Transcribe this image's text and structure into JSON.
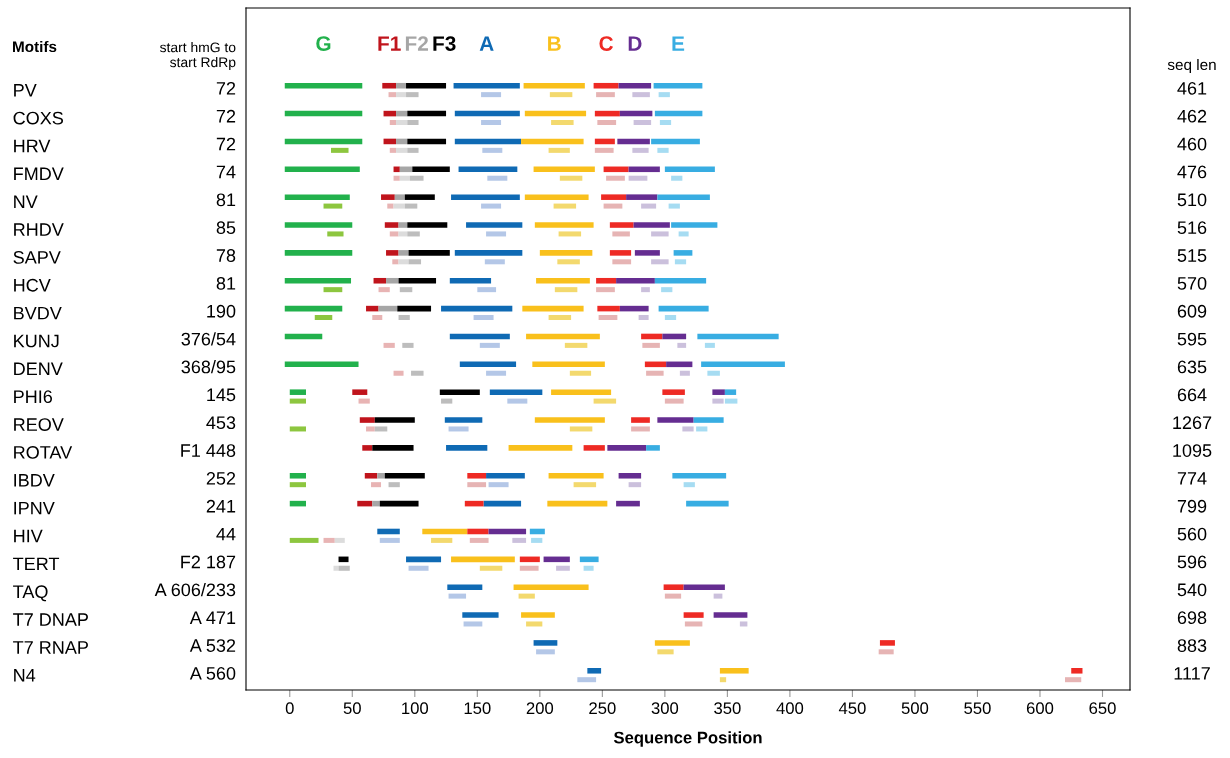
{
  "chart_data": {
    "type": "bar",
    "orientation": "horizontal",
    "xlabel": "Sequence Position",
    "categories": [
      "PV",
      "COXS",
      "HRV",
      "FMDV",
      "NV",
      "RHDV",
      "SAPV",
      "HCV",
      "BVDV",
      "KUNJ",
      "DENV",
      "PHI6",
      "REOV",
      "ROTAV",
      "IBDV",
      "IPNV",
      "HIV",
      "TERT",
      "TAQ",
      "T7 DNAP",
      "T7 RNAP",
      "N4"
    ],
    "xlim": [
      -35,
      672
    ],
    "xticks": [
      0,
      50,
      100,
      150,
      200,
      250,
      300,
      350,
      400,
      450,
      500,
      550,
      600,
      650
    ],
    "grid": false,
    "annotations": [
      "Motifs",
      "start hmG to\nstart RdRp",
      "seq len",
      "72",
      "72",
      "72",
      "74",
      "81",
      "85",
      "78",
      "81",
      "190",
      "376/54",
      "368/95",
      "145",
      "453",
      "F1 448",
      "252",
      "241",
      "44",
      "F2 187",
      "A 606/233",
      "A 471",
      "A 532",
      "A 560",
      "461",
      "462",
      "460",
      "476",
      "510",
      "516",
      "515",
      "570",
      "609",
      "595",
      "635",
      "664",
      "1267",
      "1095",
      "774",
      "799",
      "560",
      "596",
      "540",
      "698",
      "883",
      "1117"
    ],
    "series": [
      {
        "name": "G",
        "color": "#22b14c",
        "base": [
          -4,
          -4,
          -4,
          -4,
          -4,
          -4,
          -4,
          -4,
          -4,
          -4,
          -4,
          0,
          null,
          null,
          0,
          0,
          null,
          null,
          null,
          null,
          null,
          null
        ],
        "values": [
          62,
          62,
          62,
          60,
          52,
          54,
          54,
          53,
          46,
          30,
          59,
          13,
          null,
          null,
          13,
          13,
          null,
          null,
          null,
          null,
          null,
          null
        ]
      },
      {
        "name": "F1",
        "color": "#c0141c",
        "base": [
          74,
          75,
          75,
          83,
          73,
          76,
          77,
          67,
          61,
          null,
          null,
          50,
          56,
          58,
          60,
          54,
          null,
          null,
          null,
          null,
          null,
          null
        ],
        "values": [
          11,
          10,
          10,
          5,
          11,
          11,
          10,
          10,
          10,
          null,
          null,
          12,
          12,
          8,
          10,
          12,
          null,
          null,
          null,
          null,
          null,
          null
        ]
      },
      {
        "name": "F2",
        "color": "#a6a6a6",
        "base": [
          85,
          85,
          85,
          88,
          84,
          87,
          87,
          77,
          71,
          null,
          null,
          null,
          null,
          null,
          70,
          66,
          null,
          null,
          null,
          null,
          null,
          null
        ],
        "values": [
          8,
          9,
          9,
          10,
          8,
          7,
          8,
          10,
          15,
          null,
          null,
          null,
          null,
          null,
          6,
          6,
          null,
          null,
          null,
          null,
          null,
          null
        ]
      },
      {
        "name": "F3",
        "color": "#000000",
        "base": [
          93,
          94,
          94,
          98,
          92,
          94,
          95,
          87,
          86,
          null,
          null,
          120,
          68,
          66,
          76,
          72,
          null,
          39,
          null,
          null,
          null,
          null
        ],
        "values": [
          32,
          31,
          31,
          30,
          24,
          32,
          33,
          30,
          27,
          null,
          null,
          32,
          32,
          33,
          32,
          31,
          null,
          8,
          null,
          null,
          null,
          null
        ]
      },
      {
        "name": "A",
        "color": "#0f6ab4",
        "base": [
          131,
          132,
          132,
          135,
          129,
          141,
          132,
          128,
          121,
          128,
          136,
          160,
          124,
          125,
          157,
          155,
          70,
          93,
          126,
          138,
          195,
          238
        ],
        "values": [
          53,
          52,
          53,
          47,
          55,
          45,
          54,
          33,
          57,
          48,
          45,
          42,
          30,
          33,
          31,
          30,
          18,
          28,
          28,
          29,
          19,
          11
        ]
      },
      {
        "name": "B",
        "color": "#f9c01c",
        "base": [
          187,
          188,
          185,
          195,
          188,
          196,
          200,
          197,
          186,
          189,
          194,
          209,
          196,
          175,
          207,
          206,
          106,
          129,
          179,
          185,
          292,
          344
        ],
        "values": [
          49,
          49,
          50,
          49,
          51,
          47,
          42,
          43,
          49,
          59,
          58,
          48,
          56,
          51,
          44,
          48,
          36,
          51,
          60,
          27,
          28,
          23
        ]
      },
      {
        "name": "C",
        "color": "#ee2a24",
        "base": [
          243,
          244,
          244,
          251,
          249,
          256,
          256,
          245,
          246,
          281,
          284,
          298,
          273,
          235,
          142,
          140,
          142,
          184,
          299,
          315,
          472,
          625
        ],
        "values": [
          20,
          20,
          16,
          20,
          20,
          19,
          17,
          16,
          18,
          17,
          17,
          18,
          15,
          17,
          15,
          15,
          17,
          16,
          16,
          16,
          12,
          9
        ]
      },
      {
        "name": "D",
        "color": "#652d91",
        "base": [
          263,
          264,
          262,
          271,
          269,
          275,
          276,
          261,
          264,
          298,
          301,
          338,
          294,
          254,
          263,
          261,
          159,
          203,
          315,
          339,
          null,
          null
        ],
        "values": [
          26,
          26,
          26,
          25,
          25,
          29,
          20,
          31,
          23,
          19,
          21,
          10,
          29,
          31,
          18,
          19,
          30,
          21,
          33,
          27,
          null,
          null
        ]
      },
      {
        "name": "E",
        "color": "#38ade2",
        "base": [
          291,
          292,
          289,
          300,
          294,
          305,
          307,
          292,
          295,
          326,
          329,
          348,
          323,
          285,
          306,
          317,
          192,
          232,
          null,
          null,
          null,
          null
        ],
        "values": [
          39,
          38,
          39,
          40,
          42,
          37,
          15,
          41,
          40,
          65,
          67,
          9,
          24,
          11,
          43,
          34,
          12,
          15,
          null,
          null,
          null,
          null
        ]
      },
      {
        "color": "#8dc63f",
        "base": [
          null,
          null,
          33,
          null,
          27,
          30,
          null,
          27,
          20,
          null,
          null,
          0,
          0,
          null,
          0,
          null,
          0,
          null,
          null,
          null,
          null,
          null
        ],
        "values": [
          null,
          null,
          14,
          null,
          15,
          13,
          null,
          15,
          14,
          null,
          null,
          13,
          13,
          null,
          13,
          null,
          23,
          null,
          null,
          null,
          null,
          null
        ]
      },
      {
        "color": "#e8b4b4",
        "base": [
          79,
          80,
          80,
          83,
          78,
          80,
          82,
          71,
          66,
          75,
          83,
          55,
          61,
          null,
          65,
          null,
          27,
          null,
          null,
          null,
          null,
          null
        ],
        "values": [
          6,
          5,
          5,
          5,
          5,
          7,
          5,
          9,
          8,
          9,
          8,
          9,
          7,
          null,
          8,
          null,
          9,
          null,
          null,
          null,
          null,
          null
        ]
      },
      {
        "color": "#dcdcdc",
        "base": [
          85,
          85,
          85,
          88,
          83,
          87,
          87,
          null,
          null,
          null,
          null,
          null,
          null,
          null,
          null,
          null,
          36,
          35,
          null,
          null,
          null,
          null
        ],
        "values": [
          8,
          9,
          9,
          8,
          9,
          7,
          8,
          null,
          null,
          null,
          null,
          null,
          null,
          null,
          null,
          null,
          8,
          4,
          null,
          null,
          null,
          null
        ]
      },
      {
        "color": "#bdbdbd",
        "base": [
          93,
          94,
          94,
          96,
          92,
          94,
          95,
          88,
          87,
          90,
          97,
          121,
          68,
          null,
          79,
          null,
          null,
          39,
          null,
          null,
          null,
          null
        ],
        "values": [
          10,
          9,
          9,
          11,
          10,
          10,
          10,
          10,
          9,
          9,
          10,
          9,
          10,
          null,
          9,
          null,
          null,
          9,
          null,
          null,
          null,
          null
        ]
      },
      {
        "color": "#b4c7e7",
        "base": [
          153,
          153,
          154,
          158,
          153,
          157,
          156,
          150,
          147,
          152,
          157,
          174,
          127,
          null,
          159,
          null,
          72,
          95,
          127,
          139,
          197,
          230
        ],
        "values": [
          16,
          16,
          16,
          16,
          16,
          16,
          16,
          15,
          16,
          16,
          16,
          16,
          16,
          null,
          16,
          null,
          16,
          16,
          14,
          15,
          15,
          15
        ]
      },
      {
        "color": "#f3d96e",
        "base": [
          208,
          209,
          207,
          216,
          211,
          215,
          214,
          212,
          207,
          220,
          224,
          243,
          224,
          null,
          227,
          null,
          113,
          152,
          183,
          189,
          294,
          344
        ],
        "values": [
          18,
          18,
          17,
          18,
          18,
          18,
          18,
          18,
          18,
          18,
          17,
          18,
          18,
          null,
          18,
          null,
          17,
          18,
          13,
          13,
          13,
          5
        ]
      },
      {
        "color": "#e6b4b4",
        "base": [
          245,
          246,
          244,
          253,
          251,
          258,
          258,
          245,
          247,
          282,
          285,
          300,
          273,
          null,
          142,
          null,
          144,
          184,
          300,
          316,
          471,
          620
        ],
        "values": [
          15,
          15,
          15,
          15,
          15,
          14,
          15,
          15,
          15,
          14,
          14,
          15,
          15,
          null,
          15,
          null,
          15,
          15,
          13,
          14,
          12,
          13
        ]
      },
      {
        "color": "#cbc0dc",
        "base": [
          274,
          275,
          274,
          271,
          281,
          289,
          289,
          281,
          279,
          310,
          312,
          338,
          314,
          null,
          271,
          null,
          178,
          213,
          339,
          360,
          null,
          null
        ],
        "values": [
          14,
          14,
          13,
          15,
          12,
          14,
          14,
          7,
          8,
          7,
          8,
          9,
          9,
          null,
          10,
          null,
          11,
          11,
          7,
          6,
          null,
          null
        ]
      },
      {
        "color": "#a6dcf2",
        "base": [
          295,
          296,
          294,
          305,
          303,
          311,
          308,
          297,
          300,
          332,
          334,
          348,
          325,
          null,
          315,
          null,
          193,
          235,
          null,
          null,
          null,
          null
        ],
        "values": [
          9,
          9,
          9,
          9,
          9,
          8,
          9,
          9,
          9,
          8,
          10,
          10,
          9,
          null,
          9,
          null,
          9,
          8,
          null,
          null,
          null,
          null
        ]
      }
    ]
  }
}
